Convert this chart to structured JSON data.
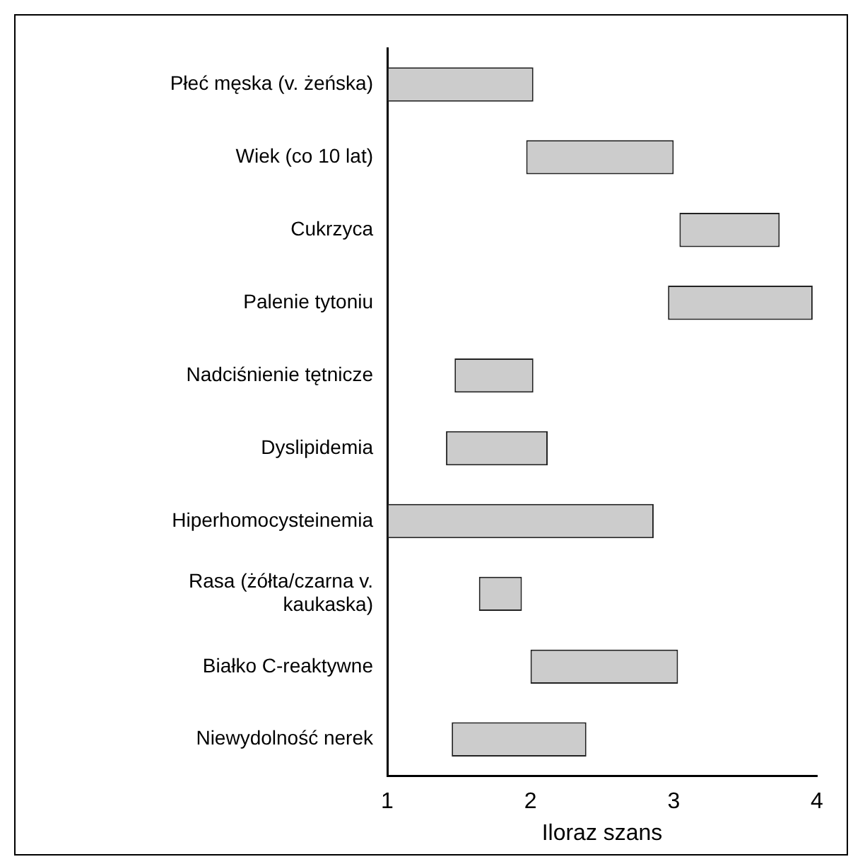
{
  "chart_data": {
    "type": "bar",
    "orientation": "horizontal",
    "xlabel": "Iloraz szans",
    "categories": [
      "Płeć męska (v. żeńska)",
      "Wiek (co 10 lat)",
      "Cukrzyca",
      "Palenie tytoniu",
      "Nadciśnienie tętnicze",
      "Dyslipidemia",
      "Hiperhomocysteinemia",
      "Rasa (żółta/czarna v. kaukaska)",
      "Białko C-reaktywne",
      "Niewydolność nerek"
    ],
    "base": [
      1,
      1.97,
      3.04,
      2.96,
      1.47,
      1.41,
      1,
      1.64,
      2.0,
      1.45
    ],
    "values": [
      1.02,
      1.03,
      0.7,
      1.01,
      0.55,
      0.71,
      1.86,
      0.3,
      1.03,
      0.94
    ],
    "color": "#cccccc",
    "xlim": [
      1,
      4
    ],
    "xticks": [
      1,
      2,
      3,
      4
    ],
    "grid": false,
    "legend": false
  }
}
